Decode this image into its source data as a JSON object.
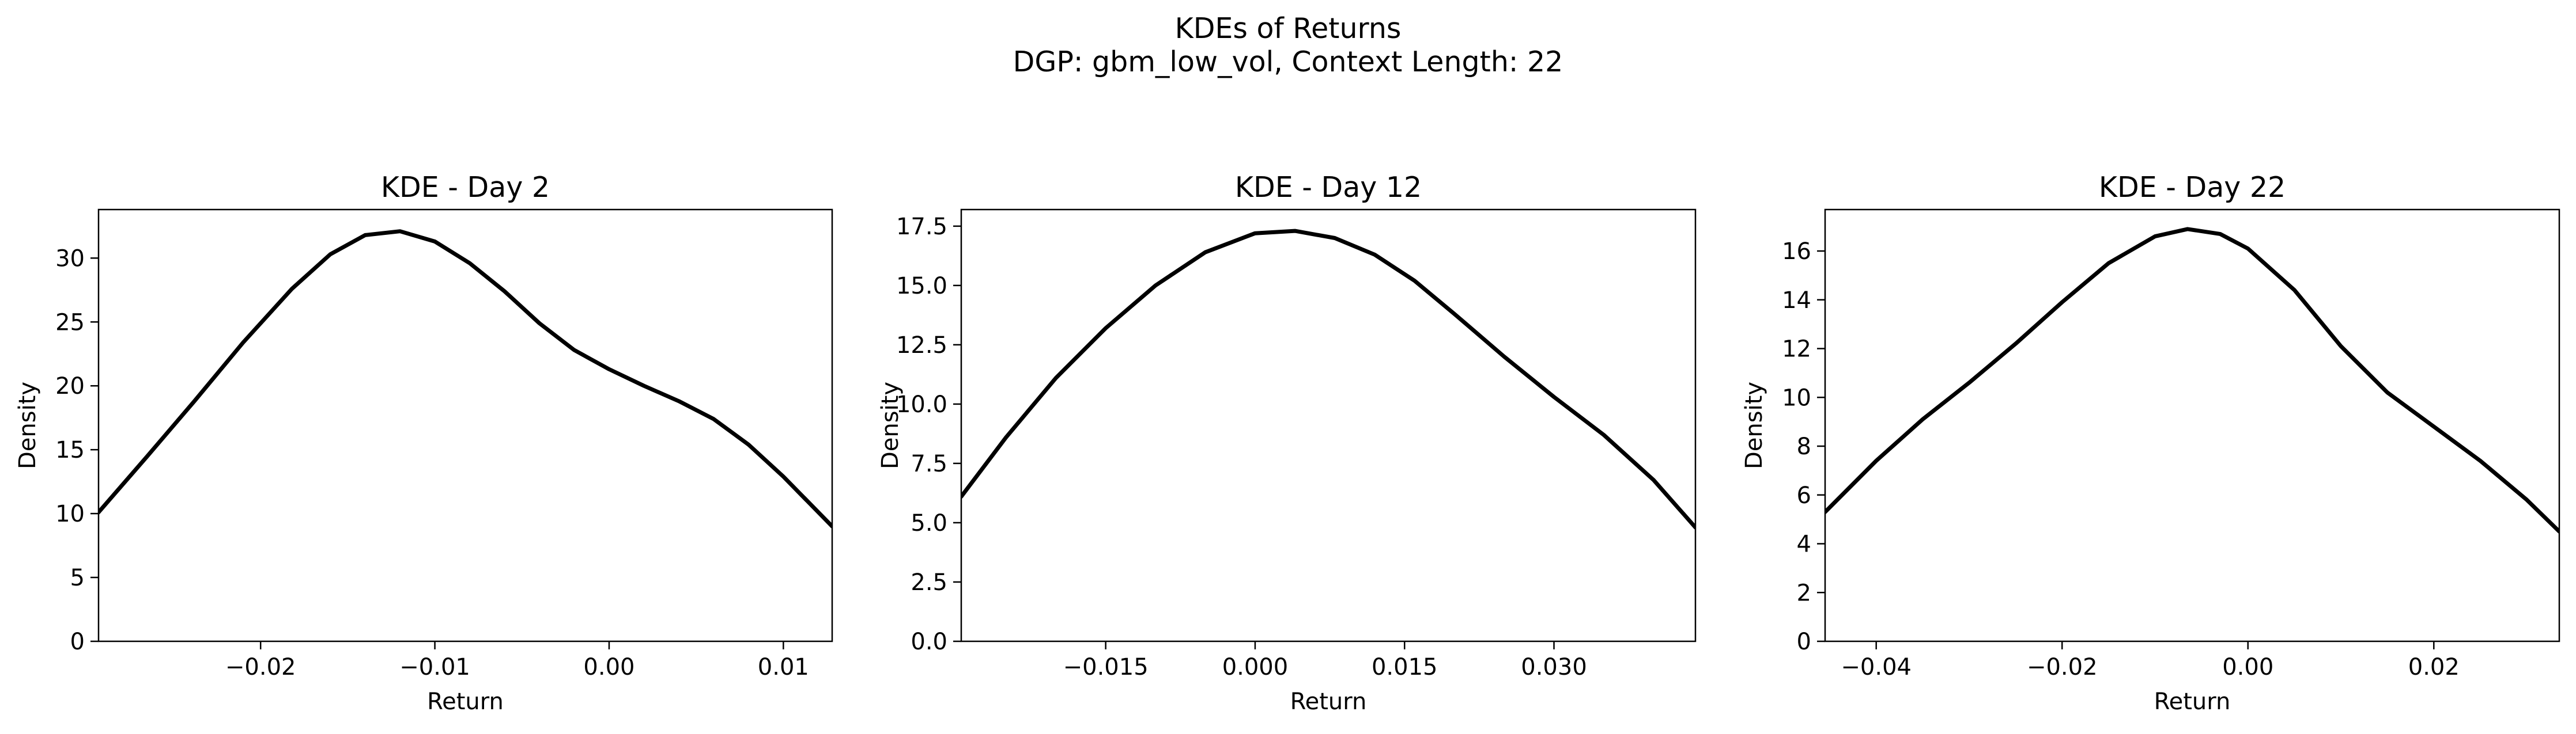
{
  "figure": {
    "suptitle_line1": "KDEs of Returns",
    "suptitle_line2": "DGP: gbm_low_vol, Context Length: 22"
  },
  "chart_data": [
    {
      "type": "line",
      "title": "KDE - Day 2",
      "xlabel": "Return",
      "ylabel": "Density",
      "xlim": [
        -0.0293,
        0.0128
      ],
      "ylim": [
        0,
        33.8
      ],
      "xticks": [
        -0.02,
        -0.01,
        0.0,
        0.01
      ],
      "xtick_labels": [
        "−0.02",
        "−0.01",
        "0.00",
        "0.01"
      ],
      "yticks": [
        0,
        5,
        10,
        15,
        20,
        25,
        30
      ],
      "ytick_labels": [
        "0",
        "5",
        "10",
        "15",
        "20",
        "25",
        "30"
      ],
      "grid": false,
      "color": "#000000",
      "series": [
        {
          "x": [
            -0.0293,
            -0.0265,
            -0.0238,
            -0.021,
            -0.0182,
            -0.016,
            -0.014,
            -0.012,
            -0.01,
            -0.008,
            -0.006,
            -0.004,
            -0.002,
            0.0,
            0.002,
            0.004,
            0.006,
            0.008,
            0.01,
            0.0128
          ],
          "y": [
            10.1,
            14.5,
            18.8,
            23.4,
            27.6,
            30.3,
            31.8,
            32.1,
            31.3,
            29.6,
            27.4,
            24.9,
            22.8,
            21.3,
            20.0,
            18.8,
            17.4,
            15.4,
            12.9,
            9.0
          ]
        }
      ]
    },
    {
      "type": "line",
      "title": "KDE - Day 12",
      "xlabel": "Return",
      "ylabel": "Density",
      "xlim": [
        -0.0295,
        0.0442
      ],
      "ylim": [
        0,
        18.2
      ],
      "xticks": [
        -0.015,
        0.0,
        0.015,
        0.03
      ],
      "xtick_labels": [
        "−0.015",
        "0.000",
        "0.015",
        "0.030"
      ],
      "yticks": [
        0.0,
        2.5,
        5.0,
        7.5,
        10.0,
        12.5,
        15.0,
        17.5
      ],
      "ytick_labels": [
        "0.0",
        "2.5",
        "5.0",
        "7.5",
        "10.0",
        "12.5",
        "15.0",
        "17.5"
      ],
      "grid": false,
      "color": "#000000",
      "series": [
        {
          "x": [
            -0.0295,
            -0.025,
            -0.02,
            -0.015,
            -0.01,
            -0.005,
            0.0,
            0.004,
            0.008,
            0.012,
            0.016,
            0.02,
            0.025,
            0.03,
            0.035,
            0.04,
            0.0442
          ],
          "y": [
            6.1,
            8.6,
            11.1,
            13.2,
            15.0,
            16.4,
            17.2,
            17.3,
            17.0,
            16.3,
            15.2,
            13.8,
            12.0,
            10.3,
            8.7,
            6.8,
            4.8
          ]
        }
      ]
    },
    {
      "type": "line",
      "title": "KDE - Day 22",
      "xlabel": "Return",
      "ylabel": "Density",
      "xlim": [
        -0.0455,
        0.0335
      ],
      "ylim": [
        0,
        17.7
      ],
      "xticks": [
        -0.04,
        -0.02,
        0.0,
        0.02
      ],
      "xtick_labels": [
        "−0.04",
        "−0.02",
        "0.00",
        "0.02"
      ],
      "yticks": [
        0,
        2,
        4,
        6,
        8,
        10,
        12,
        14,
        16
      ],
      "ytick_labels": [
        "0",
        "2",
        "4",
        "6",
        "8",
        "10",
        "12",
        "14",
        "16"
      ],
      "grid": false,
      "color": "#000000",
      "series": [
        {
          "x": [
            -0.0455,
            -0.04,
            -0.035,
            -0.03,
            -0.025,
            -0.02,
            -0.015,
            -0.01,
            -0.0065,
            -0.003,
            0.0,
            0.005,
            0.01,
            0.015,
            0.02,
            0.025,
            0.03,
            0.0335
          ],
          "y": [
            5.3,
            7.4,
            9.1,
            10.6,
            12.2,
            13.9,
            15.5,
            16.6,
            16.9,
            16.7,
            16.1,
            14.4,
            12.1,
            10.2,
            8.8,
            7.4,
            5.8,
            4.5
          ]
        }
      ]
    }
  ]
}
